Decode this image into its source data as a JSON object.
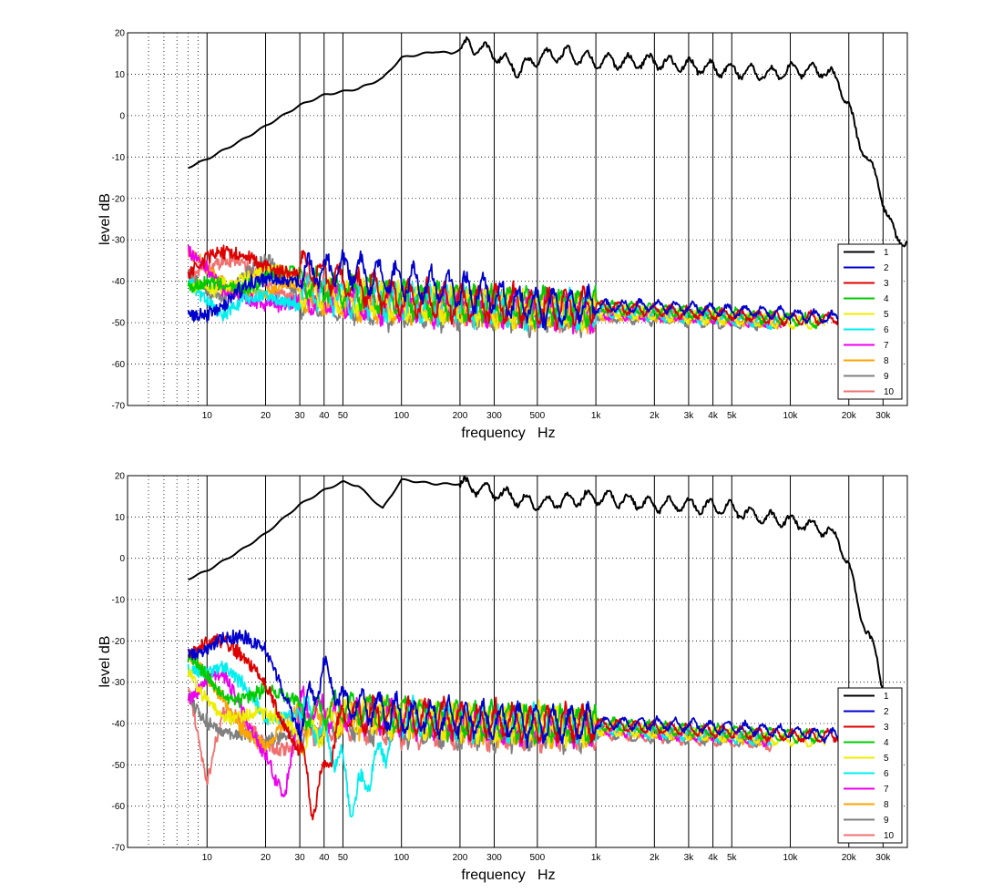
{
  "chart_data": [
    {
      "type": "line",
      "title": "",
      "xlabel": "frequency   Hz",
      "ylabel": "level dB",
      "xscale": "log",
      "xlim": [
        3.9,
        40000
      ],
      "ylim": [
        -70,
        20
      ],
      "xticks": [
        10,
        20,
        30,
        40,
        50,
        100,
        200,
        300,
        500,
        1000,
        2000,
        3000,
        4000,
        5000,
        10000,
        20000,
        30000
      ],
      "xtick_labels": [
        "10",
        "20",
        "30",
        "40",
        "50",
        "100",
        "200",
        "300",
        "500",
        "1k",
        "2k",
        "3k",
        "4k",
        "5k",
        "10k",
        "20k",
        "30k"
      ],
      "yticks": [
        -70,
        -60,
        -50,
        -40,
        -30,
        -20,
        -10,
        0,
        10,
        20
      ],
      "ytick_labels": [
        "-70",
        "-60",
        "-50",
        "-40",
        "-30",
        "-20",
        "-10",
        "0",
        "10",
        "20"
      ],
      "grid": true,
      "legend_position": "bottom-right",
      "series": [
        {
          "name": "1",
          "color": "#000000",
          "x": [
            8,
            10,
            15,
            20,
            30,
            40,
            60,
            80,
            100,
            150,
            180,
            220,
            300,
            400,
            500,
            700,
            1000,
            2000,
            3000,
            5000,
            8000,
            10000,
            12000,
            15000,
            18000,
            20000,
            22000,
            25000,
            30000,
            35000,
            40000
          ],
          "y": [
            -12.5,
            -10.5,
            -6,
            -2.5,
            2.5,
            5,
            6.5,
            9,
            14,
            15.5,
            15,
            17,
            15,
            11,
            14,
            15,
            13,
            13,
            12,
            11,
            10,
            11,
            11,
            11,
            8,
            2,
            -5,
            -10,
            -20,
            -30,
            -30
          ]
        },
        {
          "name": "2",
          "color": "#0000cc",
          "x": [
            8,
            12,
            20,
            30,
            50,
            100,
            200,
            500,
            1000,
            2000,
            5000,
            10000,
            18000
          ],
          "y": [
            -45,
            -46,
            -42,
            -38,
            -37,
            -40,
            -42,
            -46,
            -46,
            -46,
            -47,
            -48,
            -49
          ]
        },
        {
          "name": "3",
          "color": "#dd0000",
          "x": [
            8,
            12,
            20,
            30,
            50,
            100,
            200,
            500,
            1000,
            2000,
            5000,
            10000,
            18000
          ],
          "y": [
            -38,
            -36,
            -34,
            -36,
            -40,
            -44,
            -45,
            -46,
            -46,
            -47,
            -48,
            -49,
            -49
          ]
        },
        {
          "name": "4",
          "color": "#00cc00",
          "x": [
            8,
            12,
            20,
            30,
            50,
            100,
            200,
            500,
            1000,
            2000,
            5000,
            10000,
            15000
          ],
          "y": [
            -45,
            -40,
            -37,
            -40,
            -42,
            -44,
            -45,
            -46,
            -46,
            -47,
            -48,
            -49,
            -50
          ]
        },
        {
          "name": "5",
          "color": "#eeee00",
          "x": [
            8,
            12,
            20,
            30,
            50,
            100,
            200,
            500,
            1000,
            2000,
            5000,
            10000,
            15000
          ],
          "y": [
            -40,
            -38,
            -40,
            -42,
            -44,
            -45,
            -46,
            -47,
            -47,
            -48,
            -49,
            -50,
            -50
          ]
        },
        {
          "name": "6",
          "color": "#00eeee",
          "x": [
            8,
            12,
            20,
            30,
            50,
            100,
            200,
            500,
            1000,
            2000,
            5000,
            9000
          ],
          "y": [
            -36,
            -50,
            -45,
            -42,
            -44,
            -45,
            -46,
            -47,
            -47,
            -48,
            -49,
            -50
          ]
        },
        {
          "name": "7",
          "color": "#ee00ee",
          "x": [
            8,
            12,
            20,
            30,
            50,
            100,
            200,
            500,
            1000,
            2000,
            5000,
            9000
          ],
          "y": [
            -34,
            -45,
            -42,
            -44,
            -45,
            -46,
            -46,
            -47,
            -48,
            -48,
            -49,
            -50
          ]
        },
        {
          "name": "8",
          "color": "#ffa500",
          "x": [
            8,
            12,
            20,
            30,
            50,
            100,
            200,
            500,
            1000,
            2000,
            5000,
            9000
          ],
          "y": [
            -36,
            -38,
            -42,
            -44,
            -45,
            -46,
            -46,
            -47,
            -48,
            -48,
            -49,
            -50
          ]
        },
        {
          "name": "9",
          "color": "#808080",
          "x": [
            8,
            12,
            20,
            30,
            50,
            100,
            200,
            500,
            1000,
            2000,
            5000,
            9000
          ],
          "y": [
            -36,
            -42,
            -38,
            -44,
            -46,
            -47,
            -47,
            -48,
            -48,
            -49,
            -50,
            -50
          ]
        },
        {
          "name": "10",
          "color": "#f07070",
          "x": [
            8,
            12,
            20,
            30,
            50,
            100,
            200,
            500,
            1000,
            2000,
            5000,
            9000
          ],
          "y": [
            -36,
            -38,
            -40,
            -42,
            -44,
            -45,
            -46,
            -47,
            -48,
            -48,
            -49,
            -50
          ]
        }
      ]
    },
    {
      "type": "line",
      "title": "",
      "xlabel": "frequency   Hz",
      "ylabel": "level dB",
      "xscale": "log",
      "xlim": [
        3.9,
        40000
      ],
      "ylim": [
        -70,
        20
      ],
      "xticks": [
        10,
        20,
        30,
        40,
        50,
        100,
        200,
        300,
        500,
        1000,
        2000,
        3000,
        4000,
        5000,
        10000,
        20000,
        30000
      ],
      "xtick_labels": [
        "10",
        "20",
        "30",
        "40",
        "50",
        "100",
        "200",
        "300",
        "500",
        "1k",
        "2k",
        "3k",
        "4k",
        "5k",
        "10k",
        "20k",
        "30k"
      ],
      "yticks": [
        -70,
        -60,
        -50,
        -40,
        -30,
        -20,
        -10,
        0,
        10,
        20
      ],
      "ytick_labels": [
        "-70",
        "-60",
        "-50",
        "-40",
        "-30",
        "-20",
        "-10",
        "0",
        "10",
        "20"
      ],
      "grid": true,
      "legend_position": "bottom-right",
      "series": [
        {
          "name": "1",
          "color": "#000000",
          "x": [
            8,
            10,
            15,
            20,
            30,
            40,
            50,
            60,
            80,
            100,
            150,
            200,
            300,
            500,
            1000,
            2000,
            3000,
            5000,
            7000,
            10000,
            15000,
            18000,
            20000,
            22000,
            25000,
            28000,
            30000
          ],
          "y": [
            -5,
            -3,
            2,
            6,
            13,
            16.5,
            18.5,
            17.5,
            12,
            19,
            18,
            18,
            16,
            13,
            15,
            13,
            13,
            12,
            10,
            9,
            7,
            4,
            -2,
            -10,
            -18,
            -25,
            -31
          ]
        },
        {
          "name": "2",
          "color": "#0000cc",
          "x": [
            8,
            12,
            20,
            30,
            40,
            50,
            100,
            200,
            500,
            1000,
            2000,
            5000,
            10000,
            18000
          ],
          "y": [
            -20,
            -19,
            -25,
            -40,
            -27,
            -35,
            -38,
            -39,
            -40,
            -40,
            -40,
            -41,
            -42,
            -43
          ]
        },
        {
          "name": "3",
          "color": "#dd0000",
          "x": [
            8,
            12,
            20,
            30,
            35,
            50,
            100,
            200,
            500,
            1000,
            2000,
            5000,
            10000,
            18000
          ],
          "y": [
            -23,
            -23,
            -28,
            -45,
            -60,
            -38,
            -38,
            -39,
            -40,
            -40,
            -41,
            -42,
            -43,
            -43
          ]
        },
        {
          "name": "4",
          "color": "#00cc00",
          "x": [
            8,
            12,
            20,
            30,
            50,
            100,
            200,
            500,
            1000,
            2000,
            5000,
            10000,
            15000
          ],
          "y": [
            -27,
            -33,
            -29,
            -38,
            -36,
            -38,
            -39,
            -40,
            -40,
            -41,
            -42,
            -43,
            -43
          ]
        },
        {
          "name": "5",
          "color": "#eeee00",
          "x": [
            8,
            12,
            20,
            30,
            50,
            100,
            200,
            500,
            1000,
            2000,
            5000,
            10000,
            15000
          ],
          "y": [
            -27,
            -35,
            -40,
            -45,
            -38,
            -39,
            -40,
            -40,
            -41,
            -42,
            -43,
            -44,
            -44
          ]
        },
        {
          "name": "6",
          "color": "#00eeee",
          "x": [
            8,
            12,
            20,
            30,
            50,
            55,
            100,
            200,
            500,
            1000,
            2000,
            5000,
            8000
          ],
          "y": [
            -24,
            -28,
            -40,
            -35,
            -50,
            -60,
            -38,
            -40,
            -40,
            -41,
            -42,
            -43,
            -44
          ]
        },
        {
          "name": "7",
          "color": "#ee00ee",
          "x": [
            8,
            12,
            20,
            25,
            30,
            50,
            100,
            200,
            500,
            1000,
            2000,
            5000,
            8000
          ],
          "y": [
            -36,
            -30,
            -45,
            -55,
            -36,
            -38,
            -39,
            -40,
            -41,
            -41,
            -42,
            -43,
            -44
          ]
        },
        {
          "name": "8",
          "color": "#ffa500",
          "x": [
            8,
            12,
            20,
            30,
            50,
            100,
            200,
            500,
            1000,
            2000,
            5000,
            8000
          ],
          "y": [
            -26,
            -32,
            -45,
            -40,
            -38,
            -39,
            -40,
            -41,
            -41,
            -42,
            -43,
            -44
          ]
        },
        {
          "name": "9",
          "color": "#808080",
          "x": [
            8,
            12,
            20,
            30,
            50,
            100,
            200,
            500,
            1000,
            2000,
            5000,
            8000
          ],
          "y": [
            -32,
            -40,
            -48,
            -42,
            -40,
            -41,
            -42,
            -42,
            -42,
            -43,
            -44,
            -44
          ]
        },
        {
          "name": "10",
          "color": "#f07070",
          "x": [
            8,
            10,
            12,
            20,
            30,
            50,
            100,
            200,
            500,
            1000,
            2000,
            5000,
            8000
          ],
          "y": [
            -28,
            -55,
            -40,
            -45,
            -42,
            -40,
            -41,
            -42,
            -42,
            -42,
            -43,
            -44,
            -45
          ]
        }
      ]
    }
  ]
}
